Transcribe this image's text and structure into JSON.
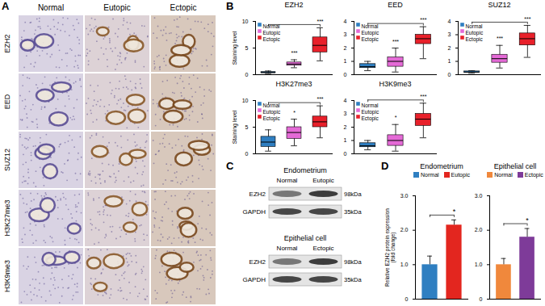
{
  "panels": {
    "A": {
      "label": "A",
      "columns": [
        "Normal",
        "Eutopic",
        "Ectopic"
      ],
      "rows": [
        "EZH2",
        "EED",
        "SUZ12",
        "H3K27me3",
        "H3K9me3"
      ]
    },
    "B": {
      "label": "B"
    },
    "C": {
      "label": "C",
      "blots": [
        {
          "title": "Endometrium",
          "lanes": [
            "Normal",
            "Eutopic"
          ],
          "rows": [
            {
              "name": "EZH2",
              "size": "98kDa"
            },
            {
              "name": "GAPDH",
              "size": "35kDa"
            }
          ]
        },
        {
          "title": "Epithelial cell",
          "lanes": [
            "Normal",
            "Ectopic"
          ],
          "rows": [
            {
              "name": "EZH2",
              "size": "98kDa"
            },
            {
              "name": "GAPDH",
              "size": "35kDa"
            }
          ]
        }
      ]
    },
    "D": {
      "label": "D"
    }
  },
  "chart_data": [
    {
      "type": "box",
      "title": "EZH2",
      "y_label": "Staining level",
      "categories": [
        "Normal",
        "Eutopic",
        "Ectopic"
      ],
      "colors": [
        "#2e7ec1",
        "#e46ad6",
        "#e8202a"
      ],
      "stats": {
        "min": [
          0.2,
          1.3,
          2.6
        ],
        "q1": [
          0.3,
          1.7,
          4.2
        ],
        "median": [
          0.4,
          2.0,
          5.5
        ],
        "q3": [
          0.5,
          2.3,
          7.0
        ],
        "max": [
          0.7,
          2.8,
          8.8
        ]
      },
      "significance": [
        null,
        "***",
        "***"
      ],
      "bracket": {
        "from": "Normal",
        "to": "Ectopic"
      },
      "ylim": [
        0,
        10
      ],
      "yticks": [
        0,
        5,
        10
      ],
      "legend": "top-left",
      "tick_labels": "y"
    },
    {
      "type": "box",
      "title": "EED",
      "categories": [
        "Normal",
        "Eutopic",
        "Ectopic"
      ],
      "colors": [
        "#2e7ec1",
        "#e46ad6",
        "#e8202a"
      ],
      "stats": {
        "min": [
          0.3,
          0.2,
          1.2
        ],
        "q1": [
          0.5,
          0.6,
          2.3
        ],
        "median": [
          0.6,
          1.0,
          2.7
        ],
        "q3": [
          0.8,
          1.3,
          3.0
        ],
        "max": [
          1.0,
          2.0,
          3.6
        ]
      },
      "significance": [
        null,
        "***",
        "***"
      ],
      "bracket": {
        "from": "Normal",
        "to": "Ectopic"
      },
      "ylim": [
        0,
        4
      ],
      "yticks": [
        0,
        1,
        2,
        3,
        4
      ],
      "legend": "top-left",
      "tick_labels": "y"
    },
    {
      "type": "box",
      "title": "SUZ12",
      "categories": [
        "Normal",
        "Eutopic",
        "Ectopic"
      ],
      "colors": [
        "#2e7ec1",
        "#e46ad6",
        "#e8202a"
      ],
      "stats": {
        "min": [
          0.1,
          0.5,
          1.3
        ],
        "q1": [
          0.15,
          0.9,
          2.2
        ],
        "median": [
          0.2,
          1.2,
          2.7
        ],
        "q3": [
          0.25,
          1.5,
          3.1
        ],
        "max": [
          0.3,
          2.2,
          3.7
        ]
      },
      "significance": [
        null,
        "***",
        "***"
      ],
      "bracket": {
        "from": "Normal",
        "to": "Ectopic"
      },
      "ylim": [
        0,
        4
      ],
      "yticks": [
        0,
        1,
        2,
        3,
        4
      ],
      "legend": "top-left",
      "tick_labels": "y"
    },
    {
      "type": "box",
      "title": "H3K27me3",
      "y_label": "Staining level",
      "categories": [
        "Normal",
        "Eutopic",
        "Ectopic"
      ],
      "colors": [
        "#2e7ec1",
        "#e46ad6",
        "#e8202a"
      ],
      "stats": {
        "min": [
          0.5,
          1.5,
          3.0
        ],
        "q1": [
          1.3,
          2.8,
          5.0
        ],
        "median": [
          2.2,
          4.0,
          6.0
        ],
        "q3": [
          3.2,
          5.0,
          7.0
        ],
        "max": [
          4.5,
          6.5,
          9.0
        ]
      },
      "significance": [
        null,
        "*",
        "***"
      ],
      "bracket": {
        "from": "Normal",
        "to": "Ectopic"
      },
      "ylim": [
        0,
        10
      ],
      "yticks": [
        0,
        5,
        10
      ],
      "legend": "top-left",
      "tick_labels": "y"
    },
    {
      "type": "box",
      "title": "H3K9me3",
      "categories": [
        "Normal",
        "Eutopic",
        "Ectopic"
      ],
      "colors": [
        "#2e7ec1",
        "#e46ad6",
        "#e8202a"
      ],
      "stats": {
        "min": [
          0.3,
          0.2,
          1.2
        ],
        "q1": [
          0.5,
          0.6,
          2.1
        ],
        "median": [
          0.6,
          1.0,
          2.6
        ],
        "q3": [
          0.8,
          1.4,
          3.0
        ],
        "max": [
          1.0,
          2.2,
          3.8
        ]
      },
      "significance": [
        null,
        "*",
        "***"
      ],
      "bracket": {
        "from": "Normal",
        "to": "Ectopic"
      },
      "ylim": [
        0,
        4
      ],
      "yticks": [
        0,
        1,
        2,
        3,
        4
      ],
      "legend": "top-left",
      "tick_labels": "y"
    },
    {
      "type": "bar",
      "title": "Endometrium",
      "y_label": "Relative EZH2 protein expression (fold change)",
      "categories": [
        "Normal",
        "Eutopic"
      ],
      "values": [
        1.0,
        2.15
      ],
      "errors": [
        0.25,
        0.15
      ],
      "colors": [
        "#2f7fc1",
        "#e3261f"
      ],
      "significance": [
        null,
        "*"
      ],
      "bracket": {
        "from": "Normal",
        "to": "Eutopic"
      },
      "ylim": [
        0,
        3
      ],
      "yticks": [
        0,
        {
          "value": 1,
          "label": "1.0"
        },
        {
          "value": 2,
          "label": "2.0"
        },
        {
          "value": 3,
          "label": "3.0"
        }
      ],
      "legend": "top",
      "tick_labels": "y"
    },
    {
      "type": "bar",
      "title": "Epithelial cell",
      "categories": [
        "Normal",
        "Ectopic"
      ],
      "values": [
        1.0,
        1.8
      ],
      "errors": [
        0.18,
        0.25
      ],
      "colors": [
        "#f0883c",
        "#7e3b99"
      ],
      "significance": [
        null,
        "*"
      ],
      "bracket": {
        "from": "Normal",
        "to": "Ectopic"
      },
      "ylim": [
        0,
        3
      ],
      "yticks": [
        0,
        {
          "value": 1,
          "label": "1.0"
        },
        {
          "value": 2,
          "label": "2.0"
        },
        {
          "value": 3,
          "label": "3.0"
        }
      ],
      "legend": "top",
      "tick_labels": "y"
    }
  ]
}
